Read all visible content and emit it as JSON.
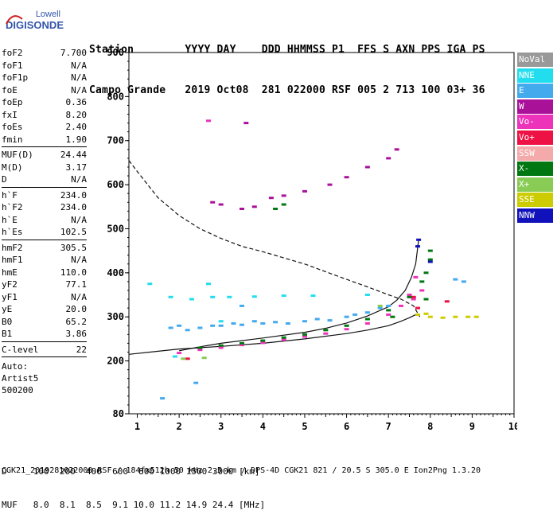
{
  "logo": {
    "line1": "Lowell",
    "line2": "DIGISONDE"
  },
  "header": {
    "row1": "Station        YYYY DAY    DDD HHMMSS P1  FFS S AXN PPS IGA PS",
    "row2": "Campo Grande   2019 Oct08  281 022000 RSF 005 2 713 100 03+ 36"
  },
  "params_group1": [
    {
      "label": "foF2",
      "value": "7.700"
    },
    {
      "label": "foF1",
      "value": "N/A"
    },
    {
      "label": "foF1p",
      "value": "N/A"
    },
    {
      "label": "foE",
      "value": "N/A"
    },
    {
      "label": "foEp",
      "value": "0.36"
    },
    {
      "label": "fxI",
      "value": "8.20"
    },
    {
      "label": "foEs",
      "value": "2.40"
    },
    {
      "label": "fmin",
      "value": "1.90"
    }
  ],
  "params_group2": [
    {
      "label": "MUF(D)",
      "value": "24.44"
    },
    {
      "label": "M(D)",
      "value": "3.17"
    },
    {
      "label": "D",
      "value": "N/A"
    }
  ],
  "params_group3": [
    {
      "label": "h`F",
      "value": "234.0"
    },
    {
      "label": "h`F2",
      "value": "234.0"
    },
    {
      "label": "h`E",
      "value": "N/A"
    },
    {
      "label": "h`Es",
      "value": "102.5"
    }
  ],
  "params_group4": [
    {
      "label": "hmF2",
      "value": "305.5"
    },
    {
      "label": "hmF1",
      "value": "N/A"
    },
    {
      "label": "hmE",
      "value": "110.0"
    },
    {
      "label": "yF2",
      "value": "77.1"
    },
    {
      "label": "yF1",
      "value": "N/A"
    },
    {
      "label": "yE",
      "value": "20.0"
    },
    {
      "label": "B0",
      "value": "65.2"
    },
    {
      "label": "B1",
      "value": "3.86"
    }
  ],
  "params_group5": [
    {
      "label": "C-level",
      "value": "22"
    }
  ],
  "auto": {
    "line1": "Auto:",
    "line2": "Artist5",
    "line3": "500200"
  },
  "legend": [
    {
      "label": "NoVal",
      "color": "#999999"
    },
    {
      "label": "NNE",
      "color": "#22ddee"
    },
    {
      "label": "E",
      "color": "#44aaee"
    },
    {
      "label": "W",
      "color": "#aa1199"
    },
    {
      "label": "Vo-",
      "color": "#ee33bb"
    },
    {
      "label": "Vo+",
      "color": "#ee1144"
    },
    {
      "label": "SSW",
      "color": "#f4aaaa"
    },
    {
      "label": "X-",
      "color": "#007711"
    },
    {
      "label": "X+",
      "color": "#88cc55"
    },
    {
      "label": "SSE",
      "color": "#cccc00"
    },
    {
      "label": "NNW",
      "color": "#1111bb"
    }
  ],
  "bottom": {
    "row1": "D     100  200  400  600  800 1000 1500 3000 [km]",
    "row2": "MUF   8.0  8.1  8.5  9.1 10.0 11.2 14.9 24.4 [MHz]"
  },
  "footer": "CGK21_2019281022000.RSF / 184fx512h 50 kHz 2.5 km / DPS-4D CGK21 821 / 20.5 S 305.0 E Ion2Png 1.3.20",
  "chart_data": {
    "type": "scatter",
    "xlabel": "",
    "ylabel": "",
    "xlim": [
      0.8,
      10
    ],
    "ylim": [
      80,
      900
    ],
    "x_ticks": [
      1,
      2,
      3,
      4,
      5,
      6,
      7,
      8,
      9,
      10
    ],
    "y_ticks": [
      80,
      200,
      300,
      400,
      500,
      600,
      700,
      800,
      900
    ],
    "legend_placement": "right",
    "lines": [
      {
        "name": "profile",
        "style": "solid",
        "points": [
          [
            0.8,
            215
          ],
          [
            1.5,
            222
          ],
          [
            2,
            227
          ],
          [
            3,
            233
          ],
          [
            4,
            240
          ],
          [
            5,
            250
          ],
          [
            6,
            262
          ],
          [
            6.5,
            270
          ],
          [
            7,
            280
          ],
          [
            7.3,
            290
          ],
          [
            7.5,
            298
          ],
          [
            7.65,
            305
          ]
        ]
      },
      {
        "name": "trace",
        "style": "solid",
        "points": [
          [
            2,
            223
          ],
          [
            2.5,
            232
          ],
          [
            3,
            240
          ],
          [
            4,
            252
          ],
          [
            5,
            265
          ],
          [
            5.5,
            274
          ],
          [
            6,
            286
          ],
          [
            6.5,
            302
          ],
          [
            7,
            323
          ],
          [
            7.2,
            338
          ],
          [
            7.4,
            360
          ],
          [
            7.55,
            390
          ],
          [
            7.65,
            420
          ],
          [
            7.72,
            475
          ]
        ]
      },
      {
        "name": "muf_curve",
        "style": "dashed",
        "points": [
          [
            0.8,
            655
          ],
          [
            1,
            630
          ],
          [
            1.5,
            570
          ],
          [
            2,
            530
          ],
          [
            2.5,
            500
          ],
          [
            3,
            478
          ],
          [
            3.5,
            460
          ],
          [
            4,
            448
          ],
          [
            5,
            420
          ],
          [
            6,
            385
          ],
          [
            6.5,
            368
          ],
          [
            7,
            350
          ],
          [
            7.3,
            340
          ],
          [
            7.6,
            325
          ],
          [
            7.75,
            300
          ]
        ]
      }
    ],
    "series": [
      {
        "name": "NNE",
        "color": "#22ddee",
        "points": [
          [
            1.8,
            345
          ],
          [
            2.3,
            340
          ],
          [
            2.8,
            345
          ],
          [
            3.2,
            345
          ],
          [
            3.8,
            346
          ],
          [
            4.5,
            348
          ],
          [
            5.2,
            348
          ],
          [
            6.5,
            350
          ],
          [
            1.3,
            375
          ],
          [
            2.7,
            375
          ],
          [
            3,
            290
          ],
          [
            1.9,
            210
          ]
        ]
      },
      {
        "name": "E",
        "color": "#44aaee",
        "points": [
          [
            1.8,
            275
          ],
          [
            2,
            280
          ],
          [
            2.2,
            270
          ],
          [
            2.5,
            275
          ],
          [
            2.8,
            280
          ],
          [
            3,
            280
          ],
          [
            3.3,
            285
          ],
          [
            3.5,
            282
          ],
          [
            3.8,
            290
          ],
          [
            4,
            285
          ],
          [
            4.3,
            288
          ],
          [
            4.6,
            285
          ],
          [
            5,
            290
          ],
          [
            5.3,
            295
          ],
          [
            5.6,
            292
          ],
          [
            6,
            300
          ],
          [
            6.2,
            305
          ],
          [
            6.5,
            310
          ],
          [
            6.8,
            320
          ],
          [
            7,
            325
          ],
          [
            2.4,
            150
          ],
          [
            1.6,
            115
          ],
          [
            8.8,
            380
          ],
          [
            8.6,
            385
          ],
          [
            3.5,
            325
          ]
        ]
      },
      {
        "name": "W",
        "color": "#aa1199",
        "points": [
          [
            2.8,
            560
          ],
          [
            3,
            555
          ],
          [
            3.5,
            545
          ],
          [
            3.8,
            550
          ],
          [
            4.2,
            570
          ],
          [
            4.5,
            575
          ],
          [
            5,
            585
          ],
          [
            5.6,
            600
          ],
          [
            6,
            617
          ],
          [
            6.5,
            640
          ],
          [
            7,
            660
          ],
          [
            3.6,
            740
          ],
          [
            7.2,
            680
          ]
        ]
      },
      {
        "name": "Vo-",
        "color": "#ee33bb",
        "points": [
          [
            2,
            218
          ],
          [
            2.5,
            225
          ],
          [
            3,
            230
          ],
          [
            3.5,
            236
          ],
          [
            4,
            241
          ],
          [
            4.5,
            248
          ],
          [
            5,
            255
          ],
          [
            5.5,
            262
          ],
          [
            6,
            272
          ],
          [
            6.5,
            285
          ],
          [
            7,
            305
          ],
          [
            7.3,
            325
          ],
          [
            7.5,
            350
          ],
          [
            7.65,
            390
          ],
          [
            7.6,
            340
          ],
          [
            7.8,
            360
          ],
          [
            2.7,
            745
          ]
        ]
      },
      {
        "name": "Vo+",
        "color": "#ee1144",
        "points": [
          [
            2.2,
            205
          ],
          [
            7.6,
            345
          ],
          [
            7.7,
            320
          ],
          [
            8.4,
            335
          ]
        ]
      },
      {
        "name": "X-",
        "color": "#007711",
        "points": [
          [
            2.5,
            230
          ],
          [
            3,
            235
          ],
          [
            3.5,
            240
          ],
          [
            4,
            246
          ],
          [
            4.5,
            253
          ],
          [
            5,
            260
          ],
          [
            5.5,
            270
          ],
          [
            6,
            280
          ],
          [
            6.5,
            295
          ],
          [
            7,
            315
          ],
          [
            7.5,
            345
          ],
          [
            7.8,
            380
          ],
          [
            7.9,
            400
          ],
          [
            8,
            430
          ],
          [
            8,
            450
          ],
          [
            7.9,
            340
          ],
          [
            4.3,
            545
          ],
          [
            4.5,
            555
          ],
          [
            7.1,
            300
          ]
        ]
      },
      {
        "name": "X+",
        "color": "#88cc55",
        "points": [
          [
            2.1,
            205
          ],
          [
            2.6,
            207
          ],
          [
            6.8,
            325
          ]
        ]
      },
      {
        "name": "SSE",
        "color": "#cccc00",
        "points": [
          [
            7.7,
            305
          ],
          [
            8,
            300
          ],
          [
            8.3,
            298
          ],
          [
            8.6,
            300
          ],
          [
            8.9,
            300
          ],
          [
            9.1,
            300
          ],
          [
            7.9,
            307
          ]
        ]
      },
      {
        "name": "NNW",
        "color": "#1111bb",
        "points": [
          [
            7.7,
            460
          ],
          [
            7.72,
            475
          ],
          [
            8,
            425
          ]
        ]
      }
    ]
  }
}
